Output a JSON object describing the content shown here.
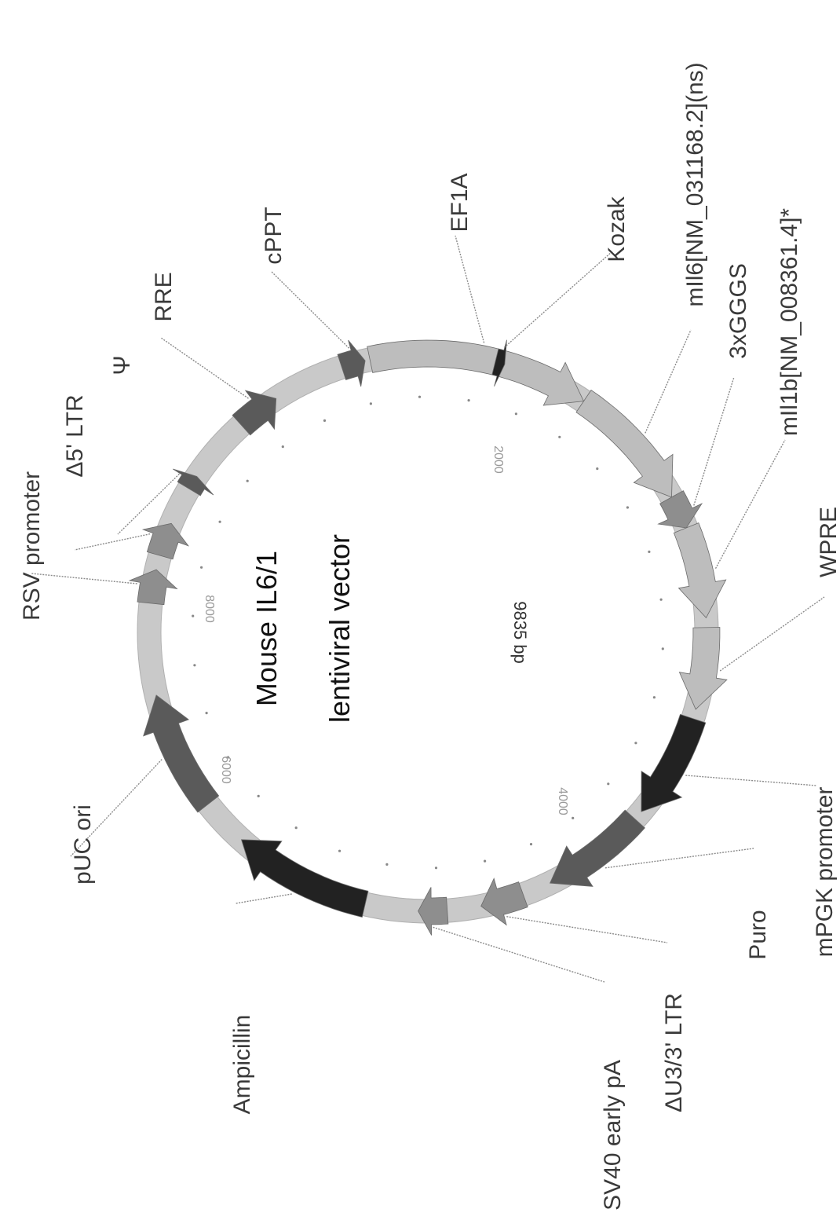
{
  "map": {
    "title_line1": "Mouse IL6/1",
    "title_line2": "lentiviral vector",
    "size_label": "9835 bp",
    "tick_labels": [
      "2000",
      "4000",
      "6000",
      "8000"
    ],
    "colors": {
      "backbone": "#c8c8c8",
      "light": "#bdbdbd",
      "medium": "#8e8e8e",
      "dark": "#5a5a5a",
      "black": "#222222"
    },
    "features": [
      {
        "id": "rsv-promoter",
        "label": "RSV promoter",
        "shade": "medium"
      },
      {
        "id": "d5-ltr",
        "label": "Δ5' LTR",
        "shade": "medium"
      },
      {
        "id": "psi",
        "label": "Ψ",
        "shade": "dark"
      },
      {
        "id": "rre",
        "label": "RRE",
        "shade": "dark"
      },
      {
        "id": "cppt",
        "label": "cPPT",
        "shade": "dark"
      },
      {
        "id": "ef1a",
        "label": "EF1A",
        "shade": "light"
      },
      {
        "id": "kozak",
        "label": "Kozak",
        "shade": "black"
      },
      {
        "id": "mil6",
        "label": "mIl6[NM_031168.2](ns)",
        "shade": "light"
      },
      {
        "id": "3xgggs",
        "label": "3xGGGS",
        "shade": "medium"
      },
      {
        "id": "mil1b",
        "label": "mIl1b[NM_008361.4]*",
        "shade": "light"
      },
      {
        "id": "wpre",
        "label": "WPRE",
        "shade": "light"
      },
      {
        "id": "mpgk",
        "label": "mPGK promoter",
        "shade": "black"
      },
      {
        "id": "puro",
        "label": "Puro",
        "shade": "dark"
      },
      {
        "id": "d3-ltr",
        "label": "ΔU3/3' LTR",
        "shade": "medium"
      },
      {
        "id": "sv40",
        "label": "SV40 early pA",
        "shade": "medium"
      },
      {
        "id": "ampicillin",
        "label": "Ampicillin",
        "shade": "black"
      },
      {
        "id": "puc-ori",
        "label": "pUC ori",
        "shade": "dark"
      }
    ]
  }
}
